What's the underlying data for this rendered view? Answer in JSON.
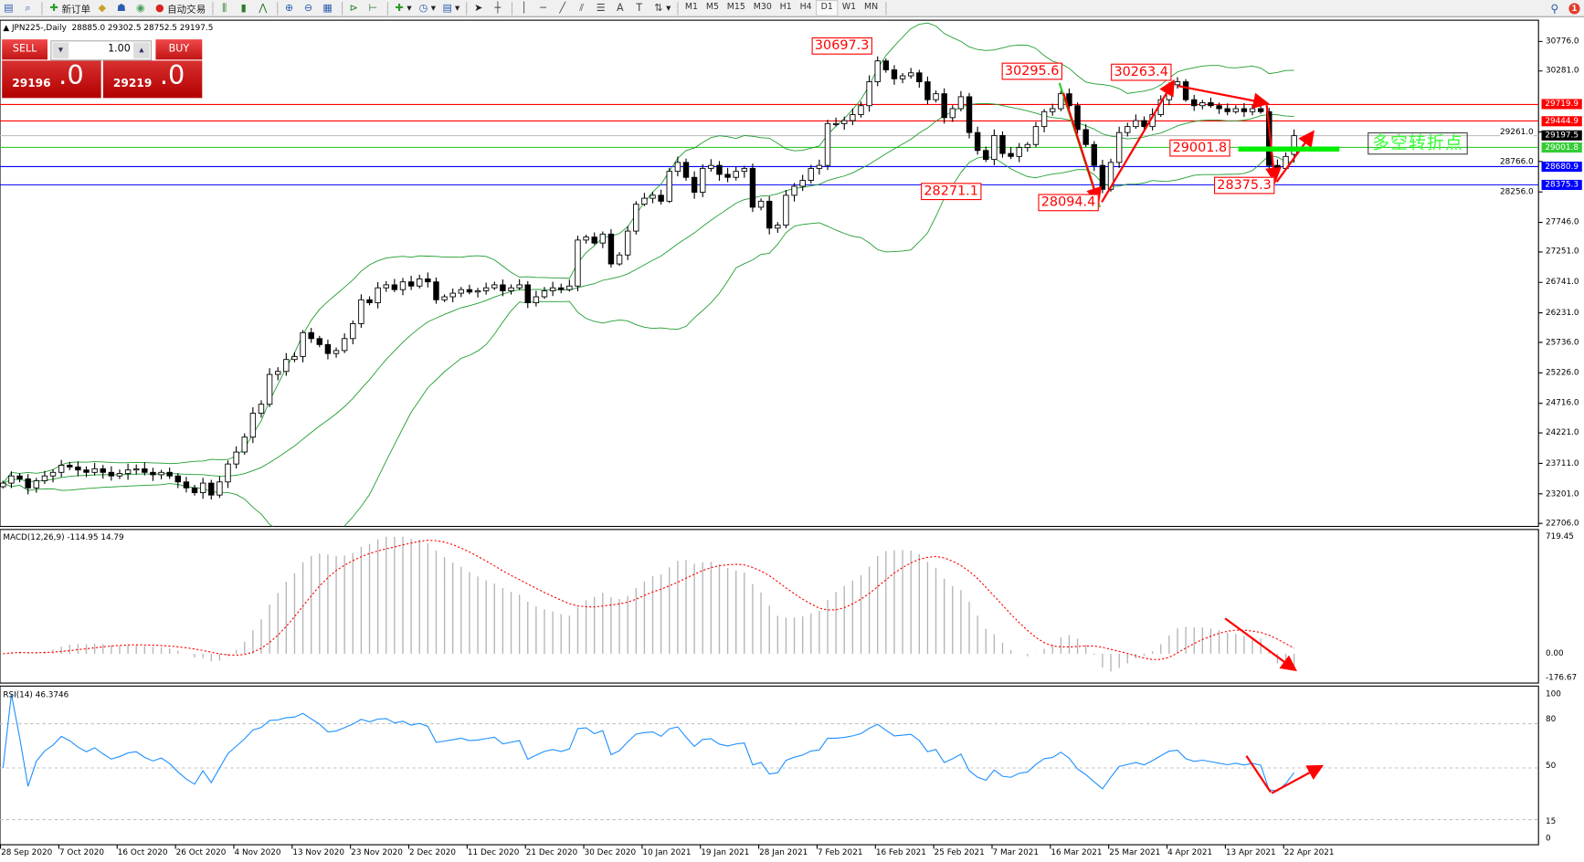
{
  "toolbar": {
    "new_order": "新订单",
    "auto_trading": "自动交易",
    "timeframes": [
      "M1",
      "M5",
      "M15",
      "M30",
      "H1",
      "H4",
      "D1",
      "W1",
      "MN"
    ],
    "active_timeframe": "D1",
    "notification_count": "1"
  },
  "chart": {
    "symbol_header": "JPN225-,Daily",
    "ohlc": "28885.0 29302.5 28752.5 29197.5"
  },
  "trade_panel": {
    "sell_label": "SELL",
    "buy_label": "BUY",
    "lots": "1.00",
    "sell_price_main": "29196",
    "sell_price_frac": ".0",
    "buy_price_main": "29219",
    "buy_price_frac": ".0"
  },
  "price_axis": {
    "ticks": [
      "30776.0",
      "30281.0",
      "29261.0",
      "28766.0",
      "28256.0",
      "27746.0",
      "27251.0",
      "26741.0",
      "26231.0",
      "25736.0",
      "25226.0",
      "24716.0",
      "24221.0",
      "23711.0",
      "23201.0",
      "22706.0"
    ]
  },
  "levels": [
    {
      "value": "29719.9",
      "color": "#ff0000"
    },
    {
      "value": "29444.9",
      "color": "#ff0000"
    },
    {
      "value": "29197.5",
      "color": "#000000"
    },
    {
      "value": "29001.8",
      "color": "#33cc33"
    },
    {
      "value": "28680.9",
      "color": "#0000ff"
    },
    {
      "value": "28375.3",
      "color": "#0000ff"
    }
  ],
  "annotations": [
    "30697.3",
    "30295.6",
    "30263.4",
    "28271.1",
    "28094.4",
    "29001.8",
    "28375.3"
  ],
  "note_text": "多空转折点",
  "macd": {
    "label": "MACD(12,26,9) -114.95 14.79",
    "axis": [
      "719.45",
      "0.00",
      "-176.67"
    ]
  },
  "rsi": {
    "label": "RSI(14) 46.3746",
    "axis": [
      "100",
      "80",
      "50",
      "15",
      "0"
    ]
  },
  "date_axis": [
    "28 Sep 2020",
    "7 Oct 2020",
    "16 Oct 2020",
    "26 Oct 2020",
    "4 Nov 2020",
    "13 Nov 2020",
    "23 Nov 2020",
    "2 Dec 2020",
    "11 Dec 2020",
    "21 Dec 2020",
    "30 Dec 2020",
    "10 Jan 2021",
    "19 Jan 2021",
    "28 Jan 2021",
    "7 Feb 2021",
    "16 Feb 2021",
    "25 Feb 2021",
    "7 Mar 2021",
    "16 Mar 2021",
    "25 Mar 2021",
    "4 Apr 2021",
    "13 Apr 2021",
    "22 Apr 2021"
  ],
  "colors": {
    "bands": "#1f9d2f",
    "signal": "#ff0000",
    "rsi": "#1e90ff",
    "histogram": "#b4b4b4",
    "arrows": "#ff0000"
  },
  "chart_data": {
    "type": "candlestick",
    "symbol": "JPN225-",
    "timeframe": "Daily",
    "closes": [
      23380,
      23500,
      23450,
      23300,
      23420,
      23500,
      23560,
      23680,
      23650,
      23600,
      23560,
      23620,
      23560,
      23500,
      23540,
      23600,
      23620,
      23560,
      23520,
      23560,
      23500,
      23400,
      23300,
      23220,
      23380,
      23180,
      23400,
      23700,
      23900,
      24150,
      24550,
      24700,
      25200,
      25250,
      25450,
      25500,
      25900,
      25800,
      25700,
      25550,
      25600,
      25800,
      26050,
      26450,
      26400,
      26650,
      26700,
      26620,
      26750,
      26680,
      26800,
      26750,
      26450,
      26500,
      26560,
      26620,
      26580,
      26600,
      26650,
      26700,
      26600,
      26650,
      26700,
      26400,
      26500,
      26600,
      26650,
      26620,
      26680,
      27450,
      27500,
      27400,
      27550,
      27050,
      27200,
      27600,
      28050,
      28150,
      28200,
      28100,
      28600,
      28750,
      28500,
      28250,
      28650,
      28700,
      28550,
      28500,
      28600,
      28650,
      28000,
      28100,
      27650,
      27700,
      28200,
      28350,
      28450,
      28650,
      28700,
      29400,
      29400,
      29450,
      29550,
      29700,
      30100,
      30450,
      30300,
      30150,
      30200,
      30250,
      30100,
      29800,
      29900,
      29500,
      29650,
      29850,
      29250,
      28950,
      28800,
      29200,
      28900,
      28850,
      29000,
      29050,
      29350,
      29600,
      29650,
      29900,
      29700,
      29300,
      29050,
      28700,
      28300,
      28750,
      29250,
      29350,
      29450,
      29350,
      29550,
      29800,
      30050,
      30100,
      29800,
      29700,
      29750,
      29700,
      29650,
      29600,
      29650,
      29600,
      29650,
      29600,
      28700,
      28650,
      28850,
      29197.5
    ],
    "last_bar": {
      "open": 28885.0,
      "high": 29302.5,
      "low": 28752.5,
      "close": 29197.5
    },
    "price_range": [
      22706.0,
      30776.0
    ],
    "indicators": [
      "Bollinger Bands(20,2)",
      "MACD(12,26,9)",
      "RSI(14)"
    ],
    "rsi_levels": [
      80,
      50,
      15
    ]
  }
}
